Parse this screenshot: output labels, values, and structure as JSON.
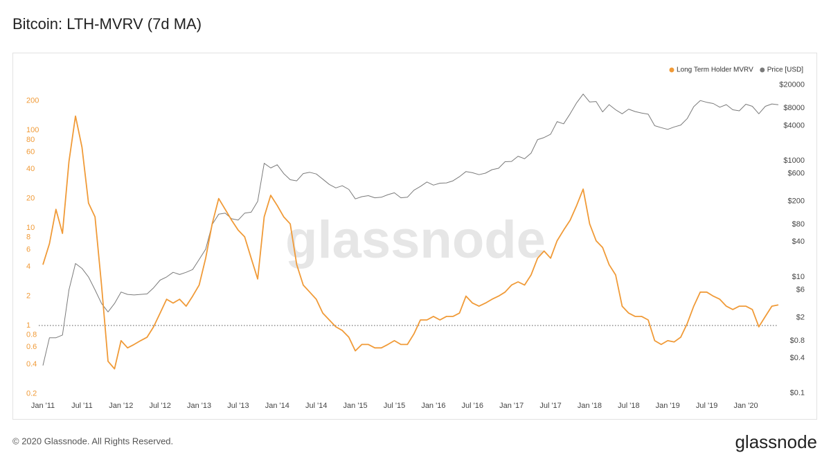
{
  "page_title": "Bitcoin: LTH-MVRV (7d MA)",
  "chart_data": {
    "type": "line",
    "watermark": "glassnode",
    "log_scale": true,
    "x": [
      "2011-01",
      "2011-02",
      "2011-03",
      "2011-04",
      "2011-05",
      "2011-06",
      "2011-07",
      "2011-08",
      "2011-09",
      "2011-10",
      "2011-11",
      "2011-12",
      "2012-01",
      "2012-02",
      "2012-03",
      "2012-04",
      "2012-05",
      "2012-06",
      "2012-07",
      "2012-08",
      "2012-09",
      "2012-10",
      "2012-11",
      "2012-12",
      "2013-01",
      "2013-02",
      "2013-03",
      "2013-04",
      "2013-05",
      "2013-06",
      "2013-07",
      "2013-08",
      "2013-09",
      "2013-10",
      "2013-11",
      "2013-12",
      "2014-01",
      "2014-02",
      "2014-03",
      "2014-04",
      "2014-05",
      "2014-06",
      "2014-07",
      "2014-08",
      "2014-09",
      "2014-10",
      "2014-11",
      "2014-12",
      "2015-01",
      "2015-02",
      "2015-03",
      "2015-04",
      "2015-05",
      "2015-06",
      "2015-07",
      "2015-08",
      "2015-09",
      "2015-10",
      "2015-11",
      "2015-12",
      "2016-01",
      "2016-02",
      "2016-03",
      "2016-04",
      "2016-05",
      "2016-06",
      "2016-07",
      "2016-08",
      "2016-09",
      "2016-10",
      "2016-11",
      "2016-12",
      "2017-01",
      "2017-02",
      "2017-03",
      "2017-04",
      "2017-05",
      "2017-06",
      "2017-07",
      "2017-08",
      "2017-09",
      "2017-10",
      "2017-11",
      "2017-12",
      "2018-01",
      "2018-02",
      "2018-03",
      "2018-04",
      "2018-05",
      "2018-06",
      "2018-07",
      "2018-08",
      "2018-09",
      "2018-10",
      "2018-11",
      "2018-12",
      "2019-01",
      "2019-02",
      "2019-03",
      "2019-04",
      "2019-05",
      "2019-06",
      "2019-07",
      "2019-08",
      "2019-09",
      "2019-10",
      "2019-11",
      "2019-12",
      "2020-01",
      "2020-02",
      "2020-03",
      "2020-04",
      "2020-05",
      "2020-06"
    ],
    "series": [
      {
        "name": "Long Term Holder MVRV",
        "color": "#f09a37",
        "axis": "y",
        "values": [
          4.2,
          6.9,
          15.5,
          8.8,
          48,
          140,
          67,
          18,
          13,
          2.6,
          0.43,
          0.36,
          0.7,
          0.59,
          0.64,
          0.7,
          0.76,
          0.97,
          1.34,
          1.86,
          1.7,
          1.86,
          1.58,
          2.0,
          2.6,
          4.9,
          11,
          20,
          15.5,
          12,
          9.5,
          8.1,
          4.9,
          3.0,
          13,
          21.6,
          17,
          13,
          11,
          4.2,
          2.6,
          2.2,
          1.86,
          1.34,
          1.14,
          0.97,
          0.89,
          0.76,
          0.55,
          0.64,
          0.64,
          0.59,
          0.59,
          0.64,
          0.7,
          0.64,
          0.64,
          0.82,
          1.14,
          1.14,
          1.24,
          1.14,
          1.24,
          1.24,
          1.34,
          2.0,
          1.7,
          1.58,
          1.7,
          1.86,
          2.0,
          2.2,
          2.6,
          2.8,
          2.6,
          3.3,
          4.9,
          5.8,
          4.9,
          7.4,
          9.5,
          12,
          17,
          25,
          11,
          7.4,
          6.3,
          4.2,
          3.3,
          1.58,
          1.34,
          1.24,
          1.24,
          1.14,
          0.7,
          0.64,
          0.7,
          0.68,
          0.76,
          1.05,
          1.58,
          2.2,
          2.2,
          2.0,
          1.86,
          1.58,
          1.46,
          1.58,
          1.58,
          1.46,
          0.97,
          1.24,
          1.58,
          1.63
        ]
      },
      {
        "name": "Price [USD]",
        "color": "#7a7a7a",
        "axis": "y2",
        "values": [
          0.3,
          0.9,
          0.9,
          1.0,
          6,
          17,
          14,
          10,
          6,
          3.5,
          2.5,
          3.5,
          5.5,
          5,
          4.9,
          5,
          5.1,
          6.5,
          8.8,
          10,
          12,
          11,
          12,
          13.4,
          20,
          30,
          80,
          120,
          125,
          100,
          95,
          125,
          130,
          200,
          900,
          750,
          850,
          600,
          470,
          450,
          600,
          630,
          590,
          480,
          390,
          340,
          370,
          320,
          220,
          240,
          250,
          230,
          235,
          260,
          280,
          230,
          235,
          310,
          360,
          430,
          380,
          410,
          415,
          450,
          530,
          650,
          620,
          575,
          610,
          700,
          740,
          960,
          970,
          1190,
          1080,
          1350,
          2300,
          2500,
          2850,
          4700,
          4300,
          6400,
          9900,
          14000,
          10200,
          10400,
          6900,
          9200,
          7500,
          6400,
          7700,
          7000,
          6600,
          6300,
          4000,
          3700,
          3450,
          3800,
          4100,
          5300,
          8500,
          10800,
          10100,
          9600,
          8300,
          9200,
          7500,
          7200,
          9350,
          8600,
          6400,
          8600,
          9450,
          9150
        ]
      }
    ],
    "xlim": [
      "2011-01",
      "2020-06"
    ],
    "xticks": [
      {
        "value": "2011-01",
        "label": "Jan '11"
      },
      {
        "value": "2011-07",
        "label": "Jul '11"
      },
      {
        "value": "2012-01",
        "label": "Jan '12"
      },
      {
        "value": "2012-07",
        "label": "Jul '12"
      },
      {
        "value": "2013-01",
        "label": "Jan '13"
      },
      {
        "value": "2013-07",
        "label": "Jul '13"
      },
      {
        "value": "2014-01",
        "label": "Jan '14"
      },
      {
        "value": "2014-07",
        "label": "Jul '14"
      },
      {
        "value": "2015-01",
        "label": "Jan '15"
      },
      {
        "value": "2015-07",
        "label": "Jul '15"
      },
      {
        "value": "2016-01",
        "label": "Jan '16"
      },
      {
        "value": "2016-07",
        "label": "Jul '16"
      },
      {
        "value": "2017-01",
        "label": "Jan '17"
      },
      {
        "value": "2017-07",
        "label": "Jul '17"
      },
      {
        "value": "2018-01",
        "label": "Jan '18"
      },
      {
        "value": "2018-07",
        "label": "Jul '18"
      },
      {
        "value": "2019-01",
        "label": "Jan '19"
      },
      {
        "value": "2019-07",
        "label": "Jul '19"
      },
      {
        "value": "2020-01",
        "label": "Jan '20"
      }
    ],
    "ylim": [
      0.18,
      300
    ],
    "yticks": [
      0.2,
      0.4,
      0.6,
      0.8,
      1,
      2,
      4,
      6,
      8,
      10,
      20,
      40,
      60,
      80,
      100,
      200
    ],
    "y2lim": [
      0.082,
      21000
    ],
    "y2ticks": [
      {
        "value": 0.1,
        "label": "$0.1"
      },
      {
        "value": 0.4,
        "label": "$0.4"
      },
      {
        "value": 0.8,
        "label": "$0.8"
      },
      {
        "value": 2,
        "label": "$2"
      },
      {
        "value": 6,
        "label": "$6"
      },
      {
        "value": 10,
        "label": "$10"
      },
      {
        "value": 40,
        "label": "$40"
      },
      {
        "value": 80,
        "label": "$80"
      },
      {
        "value": 200,
        "label": "$200"
      },
      {
        "value": 600,
        "label": "$600"
      },
      {
        "value": 1000,
        "label": "$1000"
      },
      {
        "value": 4000,
        "label": "$4000"
      },
      {
        "value": 8000,
        "label": "$8000"
      },
      {
        "value": 20000,
        "label": "$20000"
      }
    ],
    "reference_line": 1,
    "legend_position": "top-right"
  },
  "footer": {
    "copyright": "© 2020 Glassnode. All Rights Reserved.",
    "brand": "glassnode"
  }
}
